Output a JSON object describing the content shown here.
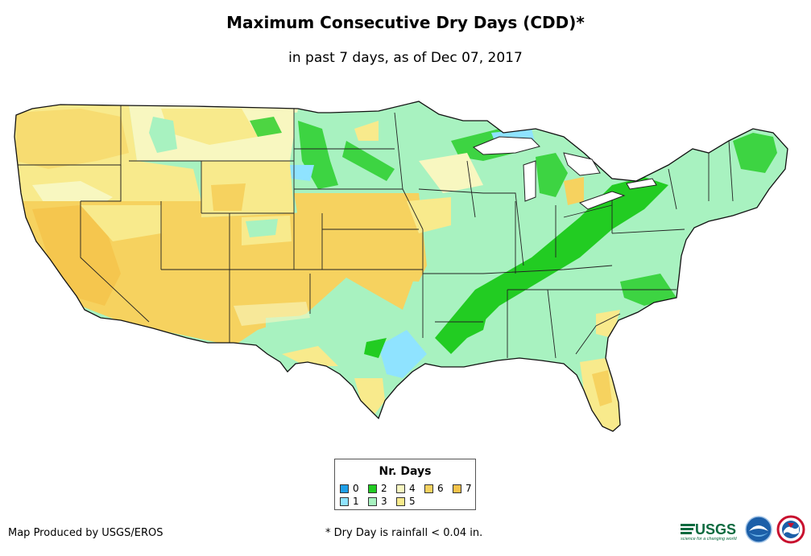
{
  "title": "Maximum Consecutive Dry Days (CDD)*",
  "subtitle": "in past 7 days, as of Dec 07, 2017",
  "legend": {
    "title": "Nr. Days",
    "items": [
      {
        "label": "0",
        "color": "#1f9fe8"
      },
      {
        "label": "1",
        "color": "#8fe3ff"
      },
      {
        "label": "2",
        "color": "#22cc22"
      },
      {
        "label": "3",
        "color": "#a8f2c0"
      },
      {
        "label": "4",
        "color": "#f8f7c0"
      },
      {
        "label": "5",
        "color": "#f8ea8c"
      },
      {
        "label": "6",
        "color": "#f6d25f"
      },
      {
        "label": "7",
        "color": "#f5c34a"
      }
    ]
  },
  "footer": {
    "credit": "Map Produced by USGS/EROS",
    "note": "* Dry Day is rainfall < 0.04 in."
  },
  "logos": {
    "usgs_text": "USGS",
    "usgs_tagline": "science for a changing world"
  },
  "icons": {
    "usgs": "usgs-logo-icon",
    "noaa": "noaa-logo-icon",
    "nws": "nws-logo-icon"
  }
}
